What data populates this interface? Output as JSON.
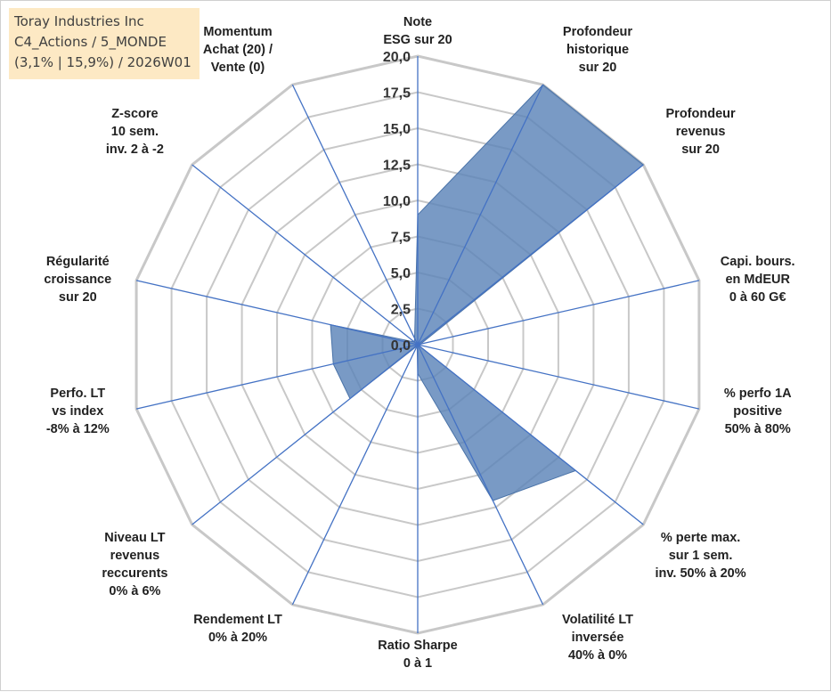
{
  "info_box": {
    "line1": "Toray Industries Inc",
    "line2": "C4_Actions / 5_MONDE",
    "line3": "(3,1% | 15,9%) / 2026W01"
  },
  "colors": {
    "area_fill": "#5b84b8",
    "area_stroke": "#4a73a8",
    "spoke": "#4472c4",
    "grid": "#c8c8c8"
  },
  "chart_data": {
    "type": "radar",
    "rmin": 0,
    "rmax": 20,
    "ticks": [
      "0,0",
      "2,5",
      "5,0",
      "7,5",
      "10,0",
      "12,5",
      "15,0",
      "17,5",
      "20,0"
    ],
    "categories": [
      [
        "Note",
        "ESG sur 20"
      ],
      [
        "Profondeur",
        "historique",
        "sur 20"
      ],
      [
        "Profondeur",
        "revenus",
        "sur 20"
      ],
      [
        "Capi. bours.",
        "en MdEUR",
        "0 à 60 G€"
      ],
      [
        "% perfo 1A",
        "positive",
        "50% à 80%"
      ],
      [
        "% perte max.",
        "sur 1 sem.",
        "inv. 50% à 20%"
      ],
      [
        "Volatilité LT",
        "inversée",
        "40% à 0%"
      ],
      [
        "Ratio Sharpe",
        "0 à 1"
      ],
      [
        "Rendement LT",
        "0% à 20%"
      ],
      [
        "Niveau LT",
        "revenus",
        "reccurents",
        "0% à 6%"
      ],
      [
        "Perfo. LT",
        "vs index",
        "-8% à 12%"
      ],
      [
        "Régularité",
        "croissance",
        "sur 20"
      ],
      [
        "Z-score",
        "10 sem.",
        "inv. 2 à -2"
      ],
      [
        "Momentum",
        "Achat (20) /",
        "Vente (0)"
      ]
    ],
    "values": [
      9.0,
      20.0,
      20.0,
      0.2,
      0.0,
      14.0,
      12.0,
      2.0,
      0.1,
      6.0,
      6.0,
      6.2,
      0.3,
      0.5
    ],
    "grid": true,
    "legend": "none"
  }
}
